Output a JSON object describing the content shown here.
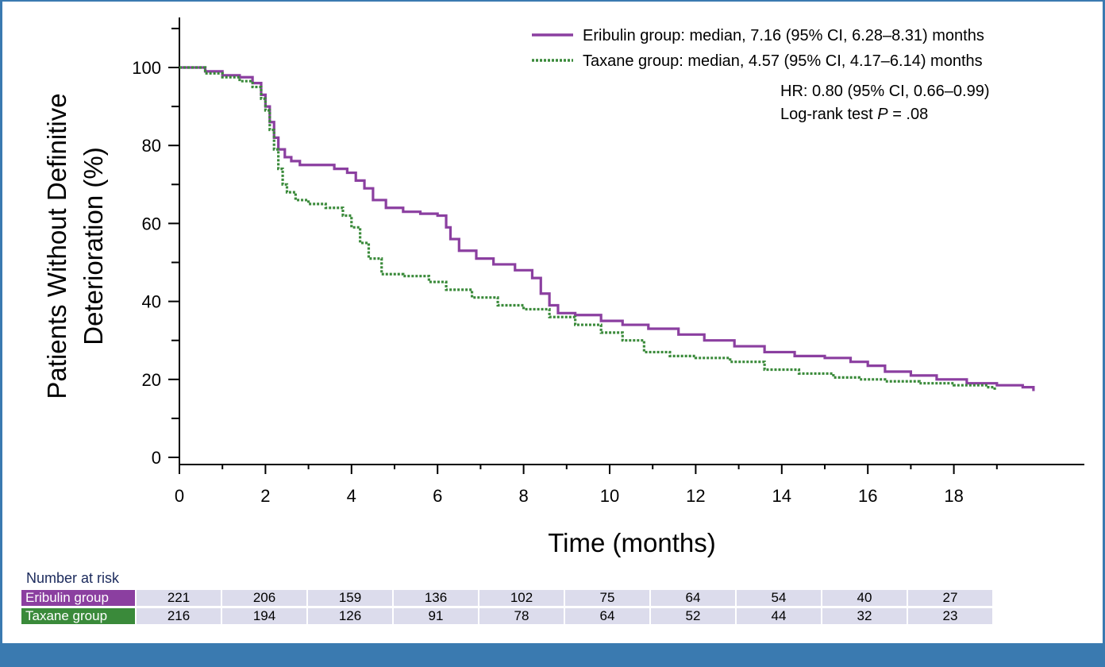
{
  "chart_data": {
    "type": "line",
    "title": "",
    "xlabel": "Time (months)",
    "ylabel_lines": [
      "Patients Without Definitive",
      "Deterioration (%)"
    ],
    "xlim": [
      0,
      21
    ],
    "ylim": [
      0,
      110
    ],
    "x_ticks": [
      0,
      2,
      4,
      6,
      8,
      10,
      12,
      14,
      16,
      18
    ],
    "y_ticks": [
      0,
      20,
      40,
      60,
      80,
      100
    ],
    "grid": false,
    "legend_position": "top-right",
    "series": [
      {
        "name": "Eribulin group: median, 7.16 (95% CI, 6.28–8.31) months",
        "color": "#8b3fa0",
        "style": "solid",
        "x": [
          0,
          0.6,
          1.0,
          1.4,
          1.7,
          1.9,
          2.0,
          2.1,
          2.2,
          2.3,
          2.45,
          2.6,
          2.8,
          3.2,
          3.6,
          3.9,
          4.1,
          4.3,
          4.5,
          4.8,
          5.2,
          5.6,
          6.0,
          6.2,
          6.3,
          6.5,
          6.9,
          7.3,
          7.8,
          8.2,
          8.4,
          8.6,
          8.8,
          9.2,
          9.8,
          10.3,
          10.9,
          11.6,
          12.2,
          12.9,
          13.6,
          14.3,
          15.0,
          15.6,
          16.0,
          16.4,
          17.0,
          17.6,
          18.3,
          19.0,
          19.6,
          19.85
        ],
        "y": [
          100,
          99,
          98,
          97.5,
          96,
          93,
          90,
          86,
          82,
          79,
          77,
          76,
          75,
          75,
          74,
          73,
          71,
          69,
          66,
          64,
          63,
          62.5,
          62,
          59,
          56,
          53,
          51,
          49.5,
          48,
          46,
          42,
          39,
          37,
          36.5,
          35,
          34,
          33,
          31.5,
          30,
          28.5,
          27,
          26,
          25.5,
          24.5,
          23.5,
          22,
          21,
          20,
          19,
          18.5,
          18,
          17
        ]
      },
      {
        "name": "Taxane group: median, 4.57 (95% CI, 4.17–6.14) months",
        "color": "#3a8a3a",
        "style": "dotted",
        "x": [
          0,
          0.6,
          1.0,
          1.4,
          1.7,
          1.9,
          2.0,
          2.1,
          2.2,
          2.3,
          2.4,
          2.5,
          2.7,
          3.0,
          3.4,
          3.8,
          4.0,
          4.2,
          4.4,
          4.7,
          5.2,
          5.8,
          6.2,
          6.8,
          7.4,
          8.0,
          8.6,
          9.2,
          9.8,
          10.3,
          10.8,
          11.4,
          12.0,
          12.8,
          13.6,
          14.4,
          15.2,
          15.8,
          16.4,
          17.2,
          18.0,
          18.8,
          18.95
        ],
        "y": [
          100,
          98.5,
          97.5,
          96.5,
          95,
          92,
          89,
          84,
          79,
          74,
          70,
          68,
          66,
          65,
          64,
          62,
          59,
          55,
          51,
          47,
          46.5,
          45,
          43,
          41,
          39,
          38,
          36,
          34,
          32,
          30,
          27,
          26,
          25.5,
          24.5,
          22.5,
          21.5,
          20.5,
          20,
          19.5,
          19,
          18.5,
          18,
          17
        ]
      }
    ],
    "annotations": [
      "HR: 0.80 (95% CI, 0.66–0.99)",
      "Log-rank test ",
      "P",
      " = .08"
    ]
  },
  "risk_table": {
    "title": "Number at risk",
    "rows": [
      {
        "label": "Eribulin group",
        "color": "#8b3fa0",
        "values": [
          "221",
          "206",
          "159",
          "136",
          "102",
          "75",
          "64",
          "54",
          "40",
          "27"
        ]
      },
      {
        "label": "Taxane group",
        "color": "#3a8a3a",
        "values": [
          "216",
          "194",
          "126",
          "91",
          "78",
          "64",
          "52",
          "44",
          "32",
          "23"
        ]
      }
    ]
  },
  "colors": {
    "frame": "#3a7ab0",
    "cell_background": "#dcdcec"
  }
}
